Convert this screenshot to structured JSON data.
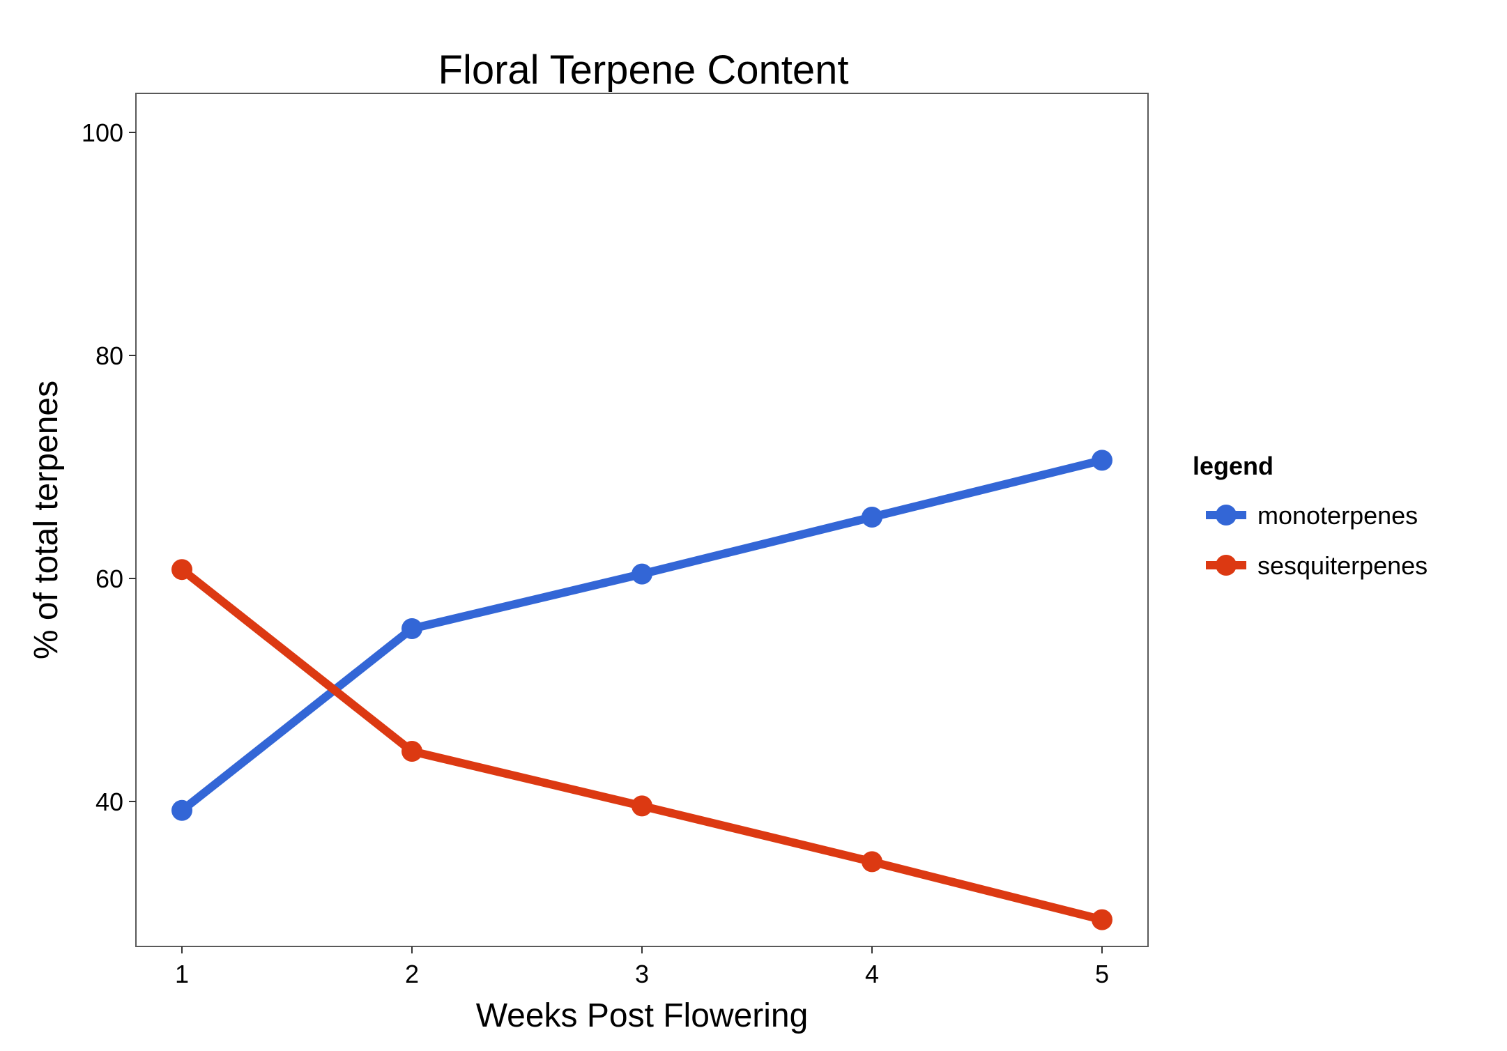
{
  "chart_data": {
    "type": "line",
    "title": "Floral Terpene Content",
    "xlabel": "Weeks Post Flowering",
    "ylabel": "% of total terpenes",
    "x": [
      1,
      2,
      3,
      4,
      5
    ],
    "x_tick_labels": [
      "1",
      "2",
      "3",
      "4",
      "5"
    ],
    "y_ticks": [
      40,
      60,
      80,
      100
    ],
    "y_tick_labels": [
      "40",
      "60",
      "80",
      "100"
    ],
    "xlim": [
      0.8,
      5.2
    ],
    "ylim": [
      27,
      103.5
    ],
    "grid": false,
    "legend": {
      "title": "legend",
      "placement": "right"
    },
    "series": [
      {
        "name": "monoterpenes",
        "color": "#3366d6",
        "values": [
          39.2,
          55.5,
          60.4,
          65.5,
          70.6
        ]
      },
      {
        "name": "sesquiterpenes",
        "color": "#dc3912",
        "values": [
          60.8,
          44.5,
          39.6,
          34.6,
          29.4
        ]
      }
    ]
  }
}
